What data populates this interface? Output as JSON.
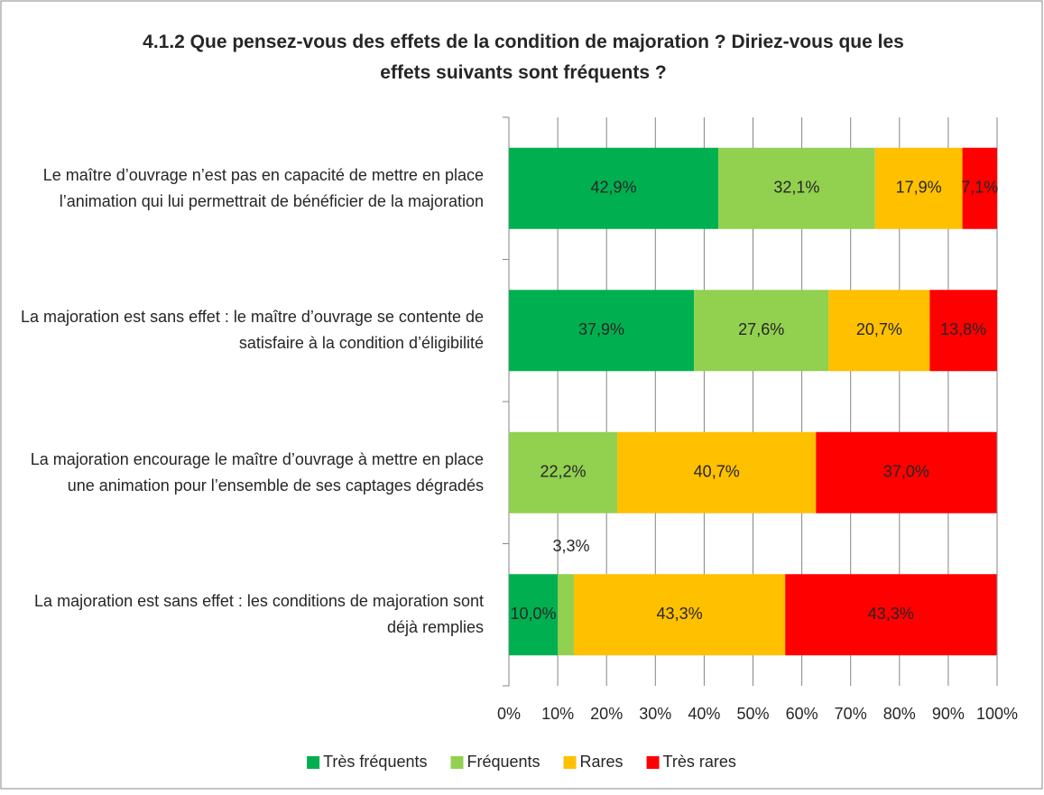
{
  "chart_data": {
    "type": "stacked-bar-horizontal",
    "title": "4.1.2 Que pensez-vous des effets de la condition de majoration ? Diriez-vous que les effets suivants sont fréquents ?",
    "categories": [
      "Le maître d’ouvrage n’est pas en capacité de mettre en place l’animation qui lui permettrait de bénéficier de la majoration",
      "La majoration est sans effet : le maître d’ouvrage se contente de satisfaire à la condition d’éligibilité",
      "La majoration encourage le maître d’ouvrage à mettre en place une animation pour l’ensemble de ses captages dégradés",
      "La majoration est sans effet : les conditions de majoration sont déjà remplies"
    ],
    "series": [
      {
        "name": "Très fréquents",
        "color": "#00b050",
        "values": [
          42.9,
          37.9,
          null,
          10.0
        ],
        "value_labels": [
          "42,9%",
          "37,9%",
          null,
          "10,0%"
        ]
      },
      {
        "name": "Fréquents",
        "color": "#92d050",
        "values": [
          32.1,
          27.6,
          22.2,
          3.3
        ],
        "value_labels": [
          "32,1%",
          "27,6%",
          "22,2%",
          "3,3%"
        ]
      },
      {
        "name": "Rares",
        "color": "#ffc000",
        "values": [
          17.9,
          20.7,
          40.7,
          43.3
        ],
        "value_labels": [
          "17,9%",
          "20,7%",
          "40,7%",
          "43,3%"
        ]
      },
      {
        "name": "Très rares",
        "color": "#ff0000",
        "values": [
          7.1,
          13.8,
          37.0,
          43.3
        ],
        "value_labels": [
          "7,1%",
          "13,8%",
          "37,0%",
          "43,3%"
        ]
      }
    ],
    "xlim": [
      0,
      100
    ],
    "xticks": [
      {
        "value": 0,
        "label": "0%"
      },
      {
        "value": 10,
        "label": "10%"
      },
      {
        "value": 20,
        "label": "20%"
      },
      {
        "value": 30,
        "label": "30%"
      },
      {
        "value": 40,
        "label": "40%"
      },
      {
        "value": 50,
        "label": "50%"
      },
      {
        "value": 60,
        "label": "60%"
      },
      {
        "value": 70,
        "label": "70%"
      },
      {
        "value": 80,
        "label": "80%"
      },
      {
        "value": 90,
        "label": "90%"
      },
      {
        "value": 100,
        "label": "100%"
      }
    ],
    "grid": true,
    "legend": "bottom"
  }
}
